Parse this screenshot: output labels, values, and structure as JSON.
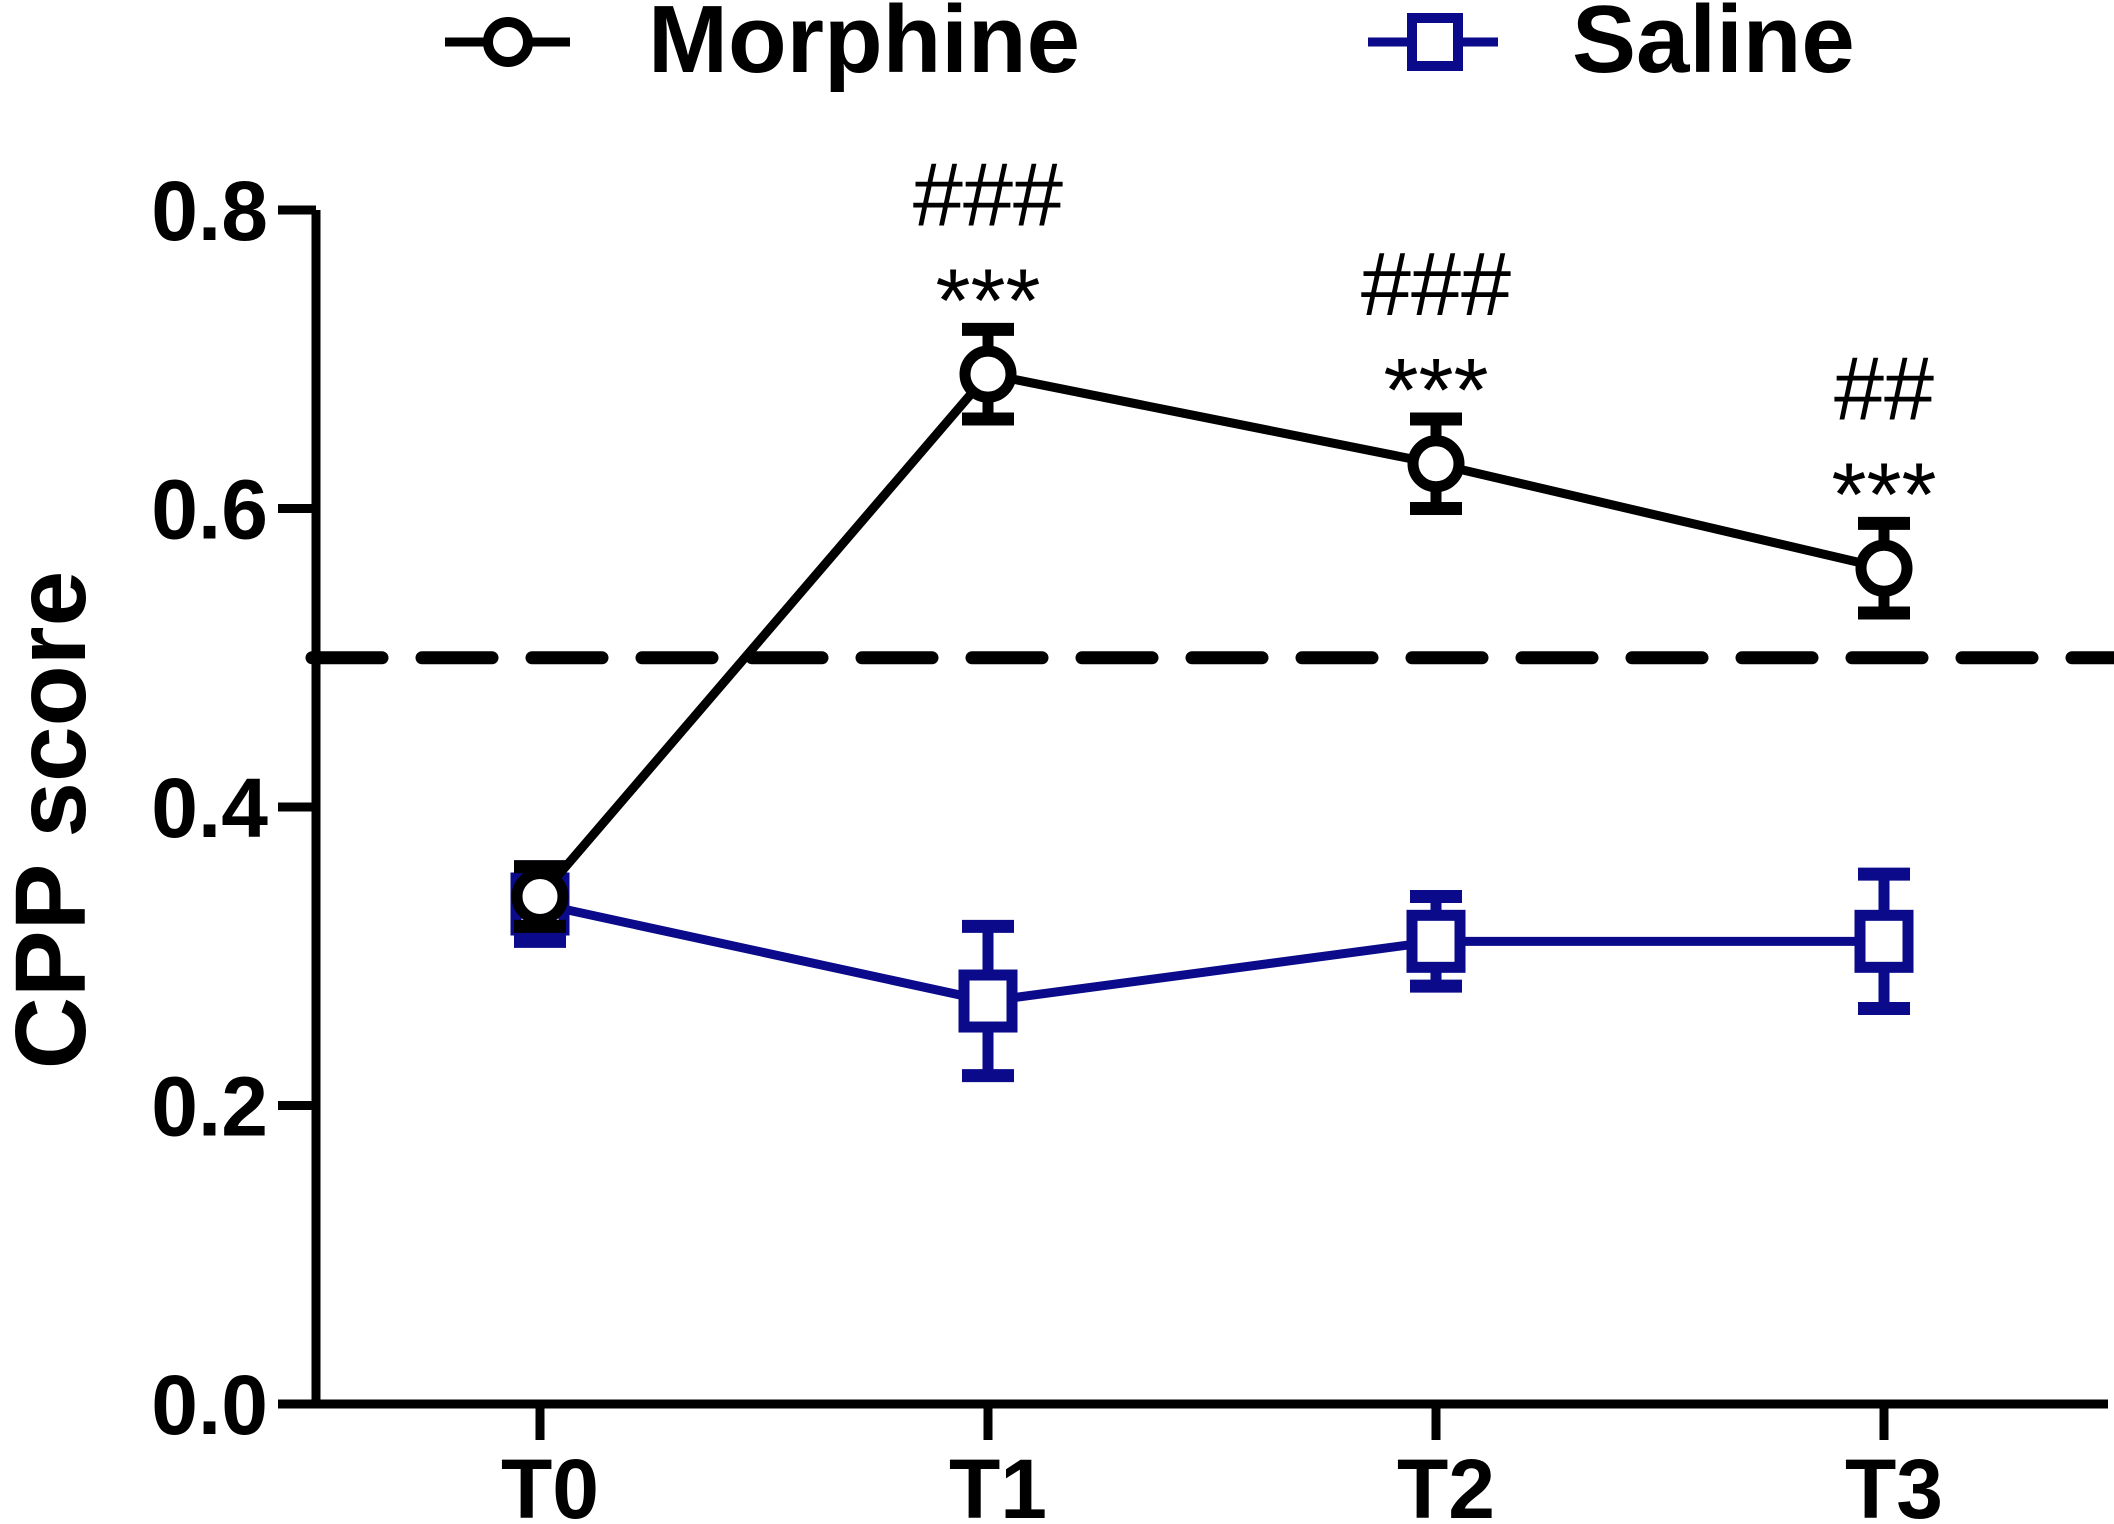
{
  "chart_data": {
    "type": "line",
    "ylabel": "CPP score",
    "xlabel": "",
    "categories": [
      "T0",
      "T1",
      "T2",
      "T3"
    ],
    "ylim": [
      0.0,
      0.8
    ],
    "yticks": [
      "0.0",
      "0.2",
      "0.4",
      "0.6",
      "0.8"
    ],
    "reference_line": {
      "y": 0.5,
      "style": "dashed"
    },
    "legend_position": "top",
    "grid": false,
    "series": [
      {
        "name": "Morphine",
        "marker": "circle",
        "color": "#000000",
        "values": [
          0.34,
          0.69,
          0.63,
          0.56
        ],
        "errors": [
          0.02,
          0.03,
          0.03,
          0.03
        ],
        "annotations": [
          {
            "category": "T1",
            "lines": [
              "###",
              "***"
            ]
          },
          {
            "category": "T2",
            "lines": [
              "###",
              "***"
            ]
          },
          {
            "category": "T3",
            "lines": [
              "##",
              "***"
            ]
          }
        ]
      },
      {
        "name": "Saline",
        "marker": "square",
        "color": "#0a0a8a",
        "values": [
          0.335,
          0.27,
          0.31,
          0.31
        ],
        "errors": [
          0.025,
          0.05,
          0.03,
          0.045
        ]
      }
    ]
  }
}
